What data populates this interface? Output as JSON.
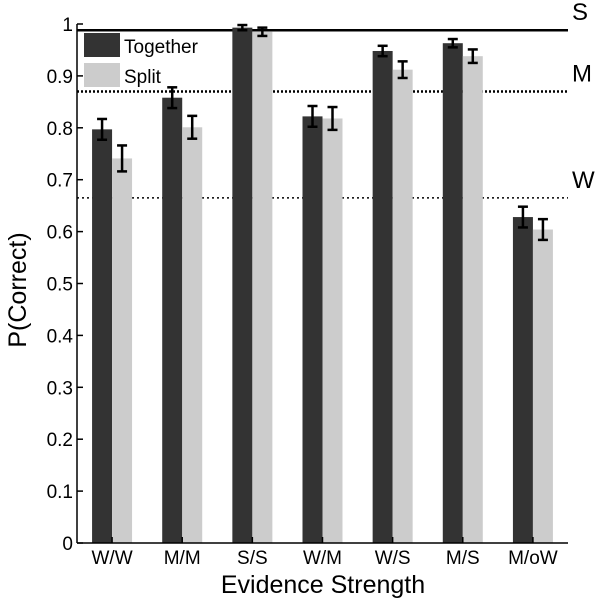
{
  "chart_data": {
    "type": "bar",
    "xlabel": "Evidence Strength",
    "ylabel": "P(Correct)",
    "ylim": [
      0,
      1
    ],
    "yticks": [
      "0",
      "0.1",
      "0.2",
      "0.3",
      "0.4",
      "0.5",
      "0.6",
      "0.7",
      "0.8",
      "0.9",
      "1"
    ],
    "categories": [
      "W/W",
      "M/M",
      "S/S",
      "W/M",
      "W/S",
      "M/S",
      "M/oW"
    ],
    "series": [
      {
        "name": "Together",
        "color": "#333333",
        "values": [
          0.797,
          0.858,
          0.993,
          0.822,
          0.948,
          0.963,
          0.628
        ],
        "errors": [
          0.02,
          0.02,
          0.005,
          0.02,
          0.01,
          0.008,
          0.02
        ]
      },
      {
        "name": "Split",
        "color": "#cccccc",
        "values": [
          0.741,
          0.801,
          0.985,
          0.818,
          0.912,
          0.938,
          0.604
        ],
        "errors": [
          0.025,
          0.022,
          0.008,
          0.022,
          0.016,
          0.013,
          0.02
        ]
      }
    ],
    "reference_lines": [
      {
        "label": "S",
        "value": 0.988,
        "style": "solid"
      },
      {
        "label": "M",
        "value": 0.87,
        "style": "dotted-thick"
      },
      {
        "label": "W",
        "value": 0.665,
        "style": "dotted"
      }
    ],
    "legend": {
      "position": "top-left"
    },
    "grid": false
  }
}
